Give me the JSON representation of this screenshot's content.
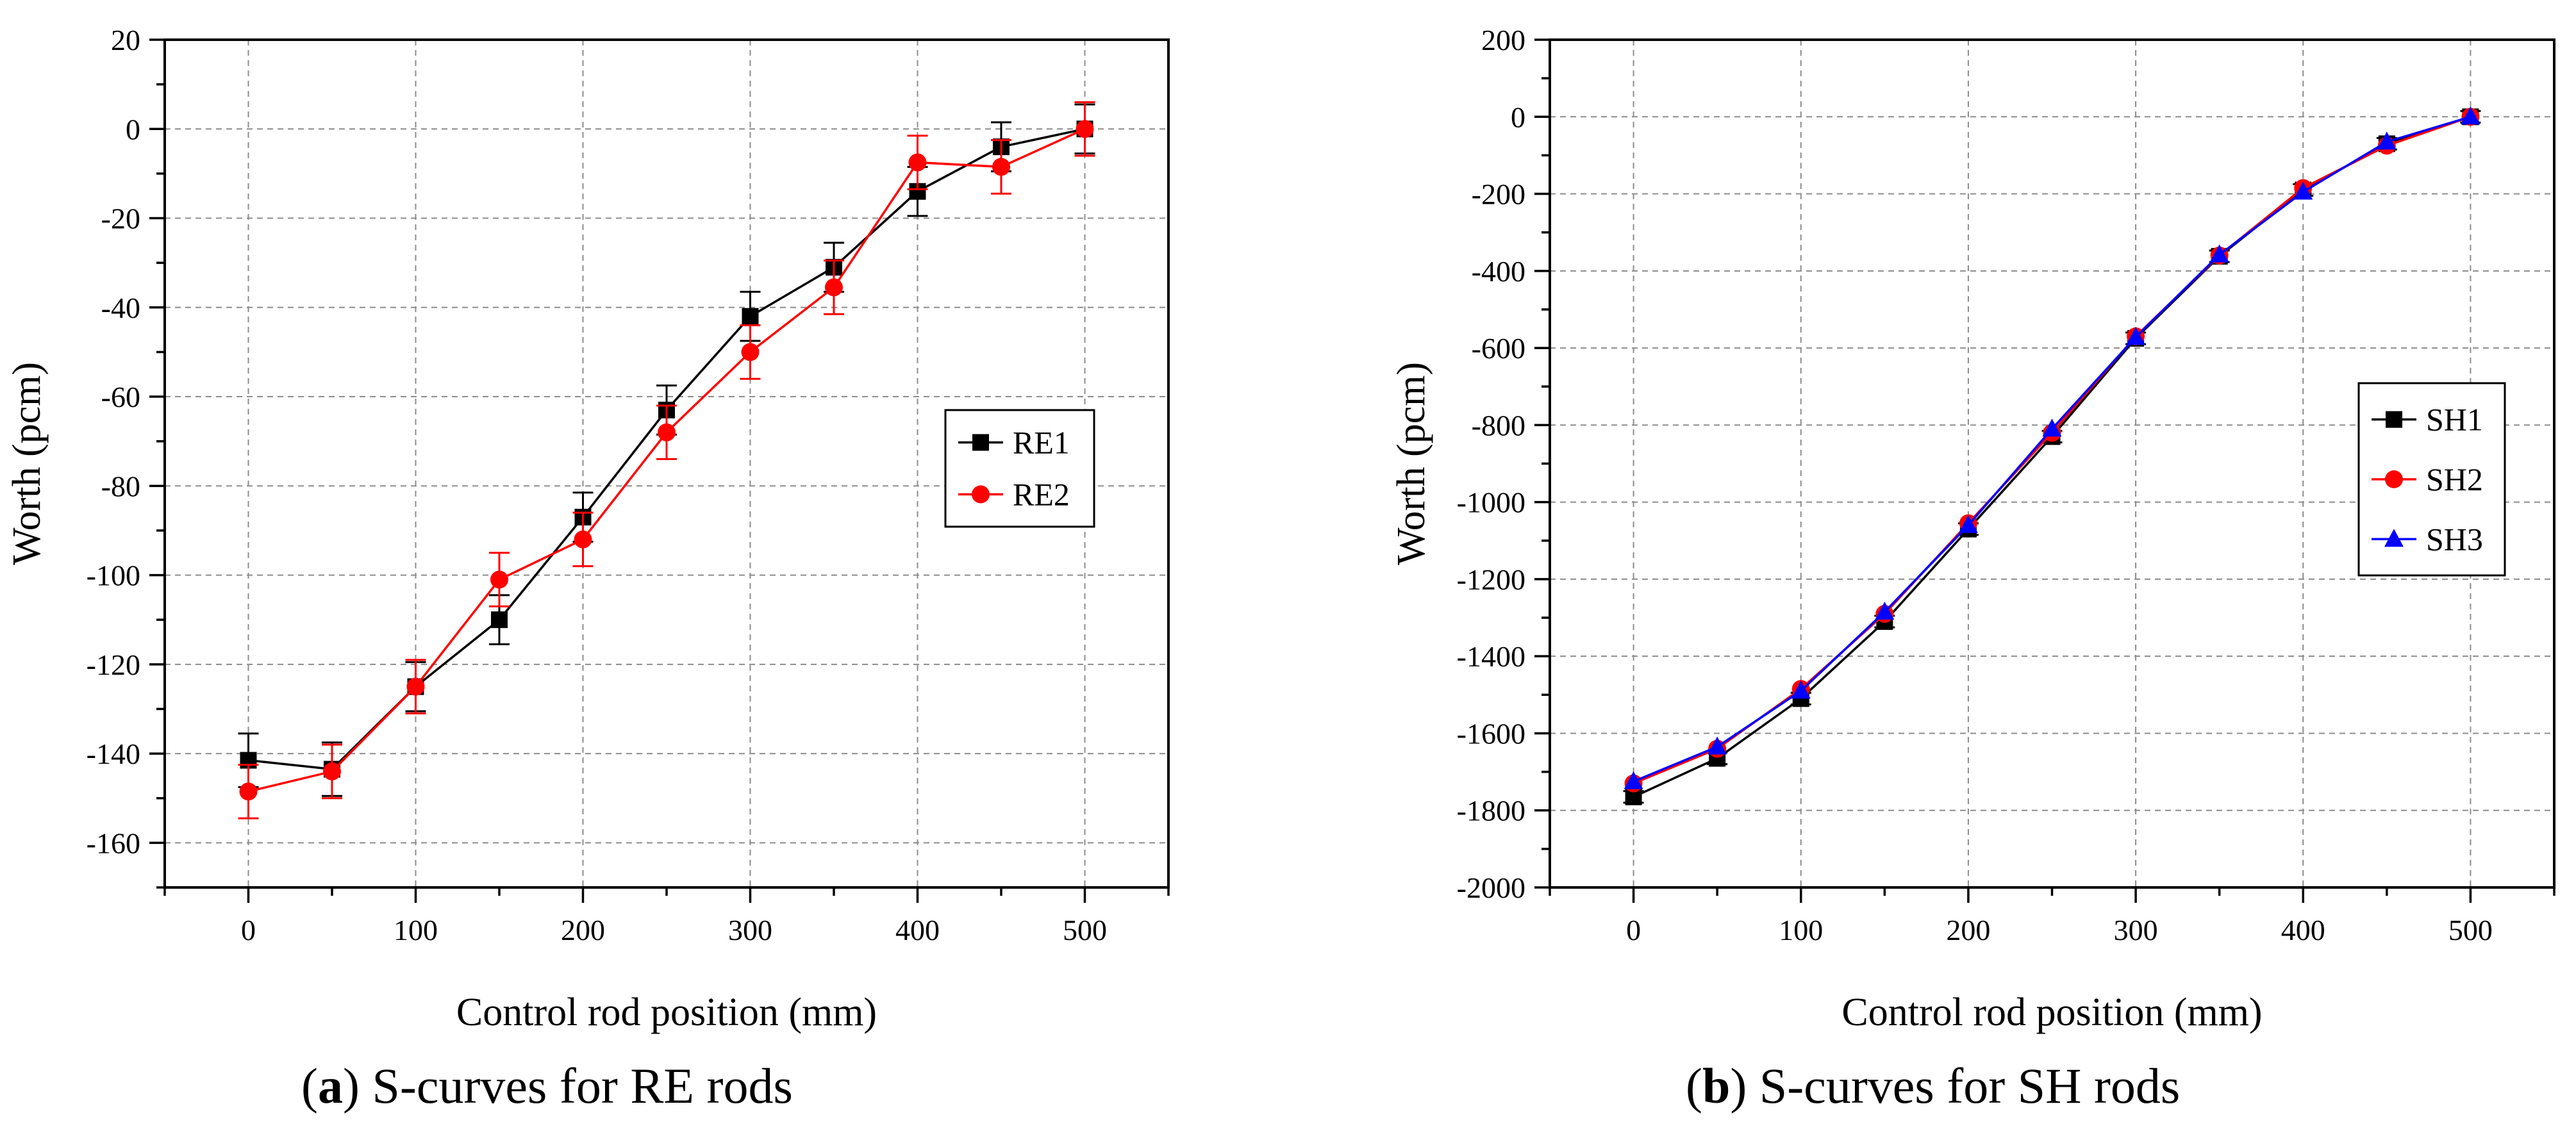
{
  "chart_data": [
    {
      "type": "line",
      "panel_label": "a",
      "caption": "S-curves for RE rods",
      "xlabel": "Control rod position (mm)",
      "ylabel": "Worth (pcm)",
      "xlim": [
        -50,
        550
      ],
      "ylim": [
        -170,
        20
      ],
      "x_ticks": [
        0,
        100,
        200,
        300,
        400,
        500
      ],
      "y_ticks": [
        20,
        0,
        -20,
        -40,
        -60,
        -80,
        -100,
        -120,
        -140,
        -160
      ],
      "grid": true,
      "legend_position": "right",
      "x": [
        0,
        50,
        100,
        150,
        200,
        250,
        300,
        350,
        400,
        450,
        500
      ],
      "series": [
        {
          "name": "RE1",
          "color": "#000000",
          "marker": "square",
          "values": [
            -141.5,
            -143.5,
            -125,
            -110,
            -87,
            -63,
            -42,
            -31,
            -14,
            -4,
            0
          ],
          "error": [
            6,
            6,
            5.5,
            5.5,
            5.5,
            5.5,
            5.5,
            5.5,
            5.5,
            5.5,
            5.5
          ]
        },
        {
          "name": "RE2",
          "color": "#ff0000",
          "marker": "circle",
          "values": [
            -148.5,
            -144,
            -125,
            -101,
            -92,
            -68,
            -50,
            -35.5,
            -7.5,
            -8.5,
            0
          ],
          "error": [
            6,
            6,
            6,
            6,
            6,
            6,
            6,
            6,
            6,
            6,
            6
          ]
        }
      ]
    },
    {
      "type": "line",
      "panel_label": "b",
      "caption": "S-curves for SH rods",
      "xlabel": "Control rod position (mm)",
      "ylabel": "Worth (pcm)",
      "xlim": [
        -50,
        550
      ],
      "ylim": [
        -2000,
        200
      ],
      "x_ticks": [
        0,
        100,
        200,
        300,
        400,
        500
      ],
      "y_ticks": [
        200,
        0,
        -200,
        -400,
        -600,
        -800,
        -1000,
        -1200,
        -1400,
        -1600,
        -1800,
        -2000
      ],
      "grid": true,
      "legend_position": "right",
      "x": [
        0,
        50,
        100,
        150,
        200,
        250,
        300,
        350,
        400,
        450,
        500
      ],
      "series": [
        {
          "name": "SH1",
          "color": "#000000",
          "marker": "square",
          "values": [
            -1765,
            -1665,
            -1510,
            -1310,
            -1070,
            -830,
            -575,
            -362,
            -190,
            -70,
            0
          ],
          "error": [
            15,
            15,
            15,
            15,
            15,
            15,
            15,
            15,
            15,
            15,
            15
          ]
        },
        {
          "name": "SH2",
          "color": "#ff0000",
          "marker": "circle",
          "values": [
            -1730,
            -1640,
            -1485,
            -1290,
            -1055,
            -820,
            -570,
            -360,
            -185,
            -75,
            0
          ],
          "error": [
            0,
            0,
            0,
            0,
            0,
            0,
            0,
            0,
            0,
            0,
            0
          ]
        },
        {
          "name": "SH3",
          "color": "#0000ff",
          "marker": "triangle",
          "values": [
            -1725,
            -1635,
            -1490,
            -1285,
            -1060,
            -810,
            -572,
            -358,
            -195,
            -65,
            0
          ],
          "error": [
            0,
            0,
            0,
            0,
            0,
            0,
            0,
            0,
            0,
            0,
            0
          ]
        }
      ]
    }
  ]
}
